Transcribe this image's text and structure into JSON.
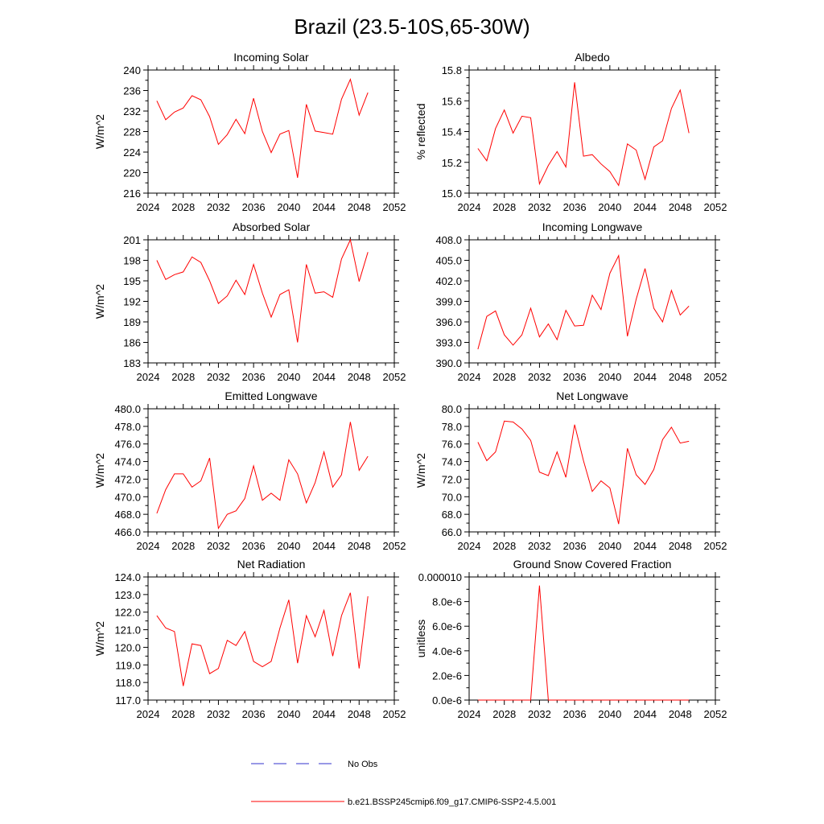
{
  "title": "Brazil (23.5-10S,65-30W)",
  "colors": {
    "model": "#ff0000",
    "obs": "#3333cc",
    "axis": "#000000"
  },
  "legend": {
    "obs_label": "No Obs",
    "model_label": "b.e21.BSSP245cmip6.f09_g17.CMIP6-SSP2-4.5.001"
  },
  "chart_data": [
    {
      "type": "line",
      "title": "Incoming Solar",
      "xlabel": "",
      "ylabel": "W/m^2",
      "xlim": [
        2024,
        2052
      ],
      "ylim": [
        216,
        240
      ],
      "xticks": [
        2024,
        2028,
        2032,
        2036,
        2040,
        2044,
        2048,
        2052
      ],
      "yticks": [
        "216",
        "220",
        "224",
        "228",
        "232",
        "236",
        "240"
      ],
      "yminor": 2,
      "x": [
        2025,
        2026,
        2027,
        2028,
        2029,
        2030,
        2031,
        2032,
        2033,
        2034,
        2035,
        2036,
        2037,
        2038,
        2039,
        2040,
        2041,
        2042,
        2043,
        2044,
        2045,
        2046,
        2047,
        2048,
        2049
      ],
      "series": [
        {
          "name": "b.e21.BSSP245cmip6.f09_g17.CMIP6-SSP2-4.5.001",
          "values": [
            234.0,
            230.3,
            231.8,
            232.6,
            235.0,
            234.2,
            230.9,
            225.5,
            227.4,
            230.4,
            227.6,
            234.5,
            228.0,
            223.9,
            227.5,
            228.2,
            219.0,
            233.3,
            228.1,
            227.8,
            227.5,
            234.3,
            238.2,
            231.2,
            235.6
          ]
        }
      ]
    },
    {
      "type": "line",
      "title": "Albedo",
      "xlabel": "",
      "ylabel": "% reflected",
      "xlim": [
        2024,
        2052
      ],
      "ylim": [
        15.0,
        15.8
      ],
      "xticks": [
        2024,
        2028,
        2032,
        2036,
        2040,
        2044,
        2048,
        2052
      ],
      "yticks": [
        "15.0",
        "15.2",
        "15.4",
        "15.6",
        "15.8"
      ],
      "yminor": 4,
      "x": [
        2025,
        2026,
        2027,
        2028,
        2029,
        2030,
        2031,
        2032,
        2033,
        2034,
        2035,
        2036,
        2037,
        2038,
        2039,
        2040,
        2041,
        2042,
        2043,
        2044,
        2045,
        2046,
        2047,
        2048,
        2049
      ],
      "series": [
        {
          "name": "b.e21.BSSP245cmip6.f09_g17.CMIP6-SSP2-4.5.001",
          "values": [
            15.29,
            15.21,
            15.42,
            15.54,
            15.39,
            15.5,
            15.49,
            15.06,
            15.18,
            15.27,
            15.17,
            15.72,
            15.24,
            15.25,
            15.19,
            15.14,
            15.05,
            15.32,
            15.28,
            15.09,
            15.3,
            15.34,
            15.55,
            15.67,
            15.39
          ]
        }
      ]
    },
    {
      "type": "line",
      "title": "Absorbed Solar",
      "xlabel": "",
      "ylabel": "W/m^2",
      "xlim": [
        2024,
        2052
      ],
      "ylim": [
        183,
        201
      ],
      "xticks": [
        2024,
        2028,
        2032,
        2036,
        2040,
        2044,
        2048,
        2052
      ],
      "yticks": [
        "183",
        "186",
        "189",
        "192",
        "195",
        "198",
        "201"
      ],
      "yminor": 2,
      "x": [
        2025,
        2026,
        2027,
        2028,
        2029,
        2030,
        2031,
        2032,
        2033,
        2034,
        2035,
        2036,
        2037,
        2038,
        2039,
        2040,
        2041,
        2042,
        2043,
        2044,
        2045,
        2046,
        2047,
        2048,
        2049
      ],
      "series": [
        {
          "name": "b.e21.BSSP245cmip6.f09_g17.CMIP6-SSP2-4.5.001",
          "values": [
            198.0,
            195.2,
            195.9,
            196.3,
            198.5,
            197.7,
            195.0,
            191.7,
            192.8,
            195.1,
            193.0,
            197.4,
            193.2,
            189.7,
            193.0,
            193.7,
            186.0,
            197.4,
            193.2,
            193.4,
            192.6,
            198.2,
            201.0,
            194.9,
            199.2
          ]
        }
      ]
    },
    {
      "type": "line",
      "title": "Incoming Longwave",
      "xlabel": "",
      "ylabel": "",
      "xlim": [
        2024,
        2052
      ],
      "ylim": [
        390.0,
        408.0
      ],
      "xticks": [
        2024,
        2028,
        2032,
        2036,
        2040,
        2044,
        2048,
        2052
      ],
      "yticks": [
        "390.0",
        "393.0",
        "396.0",
        "399.0",
        "402.0",
        "405.0",
        "408.0"
      ],
      "yminor": 2,
      "x": [
        2025,
        2026,
        2027,
        2028,
        2029,
        2030,
        2031,
        2032,
        2033,
        2034,
        2035,
        2036,
        2037,
        2038,
        2039,
        2040,
        2041,
        2042,
        2043,
        2044,
        2045,
        2046,
        2047,
        2048,
        2049
      ],
      "series": [
        {
          "name": "b.e21.BSSP245cmip6.f09_g17.CMIP6-SSP2-4.5.001",
          "values": [
            392.0,
            396.8,
            397.6,
            394.1,
            392.6,
            394.1,
            398.0,
            393.8,
            395.7,
            393.4,
            397.7,
            395.4,
            395.5,
            399.9,
            397.8,
            403.1,
            405.7,
            393.9,
            399.3,
            403.8,
            398.0,
            396.0,
            400.6,
            397.0,
            398.3
          ]
        }
      ]
    },
    {
      "type": "line",
      "title": "Emitted Longwave",
      "xlabel": "",
      "ylabel": "W/m^2",
      "xlim": [
        2024,
        2052
      ],
      "ylim": [
        466.0,
        480.0
      ],
      "xticks": [
        2024,
        2028,
        2032,
        2036,
        2040,
        2044,
        2048,
        2052
      ],
      "yticks": [
        "466.0",
        "468.0",
        "470.0",
        "472.0",
        "474.0",
        "476.0",
        "478.0",
        "480.0"
      ],
      "yminor": 2,
      "x": [
        2025,
        2026,
        2027,
        2028,
        2029,
        2030,
        2031,
        2032,
        2033,
        2034,
        2035,
        2036,
        2037,
        2038,
        2039,
        2040,
        2041,
        2042,
        2043,
        2044,
        2045,
        2046,
        2047,
        2048,
        2049
      ],
      "series": [
        {
          "name": "b.e21.BSSP245cmip6.f09_g17.CMIP6-SSP2-4.5.001",
          "values": [
            468.1,
            470.8,
            472.6,
            472.6,
            471.1,
            471.8,
            474.4,
            466.4,
            468.0,
            468.4,
            469.8,
            473.5,
            469.6,
            470.4,
            469.6,
            474.2,
            472.6,
            469.3,
            471.6,
            475.1,
            471.1,
            472.5,
            478.5,
            473.0,
            474.6
          ]
        }
      ]
    },
    {
      "type": "line",
      "title": "Net Longwave",
      "xlabel": "",
      "ylabel": "W/m^2",
      "xlim": [
        2024,
        2052
      ],
      "ylim": [
        66.0,
        80.0
      ],
      "xticks": [
        2024,
        2028,
        2032,
        2036,
        2040,
        2044,
        2048,
        2052
      ],
      "yticks": [
        "66.0",
        "68.0",
        "70.0",
        "72.0",
        "74.0",
        "76.0",
        "78.0",
        "80.0"
      ],
      "yminor": 2,
      "x": [
        2025,
        2026,
        2027,
        2028,
        2029,
        2030,
        2031,
        2032,
        2033,
        2034,
        2035,
        2036,
        2037,
        2038,
        2039,
        2040,
        2041,
        2042,
        2043,
        2044,
        2045,
        2046,
        2047,
        2048,
        2049
      ],
      "series": [
        {
          "name": "b.e21.BSSP245cmip6.f09_g17.CMIP6-SSP2-4.5.001",
          "values": [
            76.2,
            74.1,
            75.1,
            78.6,
            78.5,
            77.7,
            76.4,
            72.8,
            72.4,
            75.1,
            72.2,
            78.2,
            74.1,
            70.6,
            71.8,
            71.0,
            66.9,
            75.5,
            72.5,
            71.4,
            73.1,
            76.5,
            77.9,
            76.1,
            76.3
          ]
        }
      ]
    },
    {
      "type": "line",
      "title": "Net Radiation",
      "xlabel": "",
      "ylabel": "W/m^2",
      "xlim": [
        2024,
        2052
      ],
      "ylim": [
        117.0,
        124.0
      ],
      "xticks": [
        2024,
        2028,
        2032,
        2036,
        2040,
        2044,
        2048,
        2052
      ],
      "yticks": [
        "117.0",
        "118.0",
        "119.0",
        "120.0",
        "121.0",
        "122.0",
        "123.0",
        "124.0"
      ],
      "yminor": 2,
      "x": [
        2025,
        2026,
        2027,
        2028,
        2029,
        2030,
        2031,
        2032,
        2033,
        2034,
        2035,
        2036,
        2037,
        2038,
        2039,
        2040,
        2041,
        2042,
        2043,
        2044,
        2045,
        2046,
        2047,
        2048,
        2049
      ],
      "series": [
        {
          "name": "b.e21.BSSP245cmip6.f09_g17.CMIP6-SSP2-4.5.001",
          "values": [
            121.8,
            121.1,
            120.9,
            117.8,
            120.2,
            120.1,
            118.5,
            118.8,
            120.4,
            120.1,
            120.9,
            119.2,
            118.9,
            119.2,
            121.1,
            122.7,
            119.1,
            121.8,
            120.6,
            122.1,
            119.5,
            121.8,
            123.1,
            118.8,
            122.9
          ]
        }
      ]
    },
    {
      "type": "line",
      "title": "Ground Snow Covered Fraction",
      "xlabel": "",
      "ylabel": "unitless",
      "xlim": [
        2024,
        2052
      ],
      "ylim": [
        0,
        1e-05
      ],
      "xticks": [
        2024,
        2028,
        2032,
        2036,
        2040,
        2044,
        2048,
        2052
      ],
      "yticks": [
        "0.0e-6",
        "2.0e-6",
        "4.0e-6",
        "6.0e-6",
        "8.0e-6",
        "0.000010"
      ],
      "yminor": 2,
      "x": [
        2025,
        2026,
        2027,
        2028,
        2029,
        2030,
        2031,
        2032,
        2033,
        2034,
        2035,
        2036,
        2037,
        2038,
        2039,
        2040,
        2041,
        2042,
        2043,
        2044,
        2045,
        2046,
        2047,
        2048,
        2049
      ],
      "series": [
        {
          "name": "b.e21.BSSP245cmip6.f09_g17.CMIP6-SSP2-4.5.001",
          "values": [
            0,
            0,
            0,
            0,
            0,
            0,
            0,
            9.3e-06,
            0,
            0,
            0,
            0,
            0,
            0,
            0,
            0,
            0,
            0,
            0,
            0,
            0,
            0,
            0,
            0,
            0
          ]
        }
      ]
    }
  ]
}
